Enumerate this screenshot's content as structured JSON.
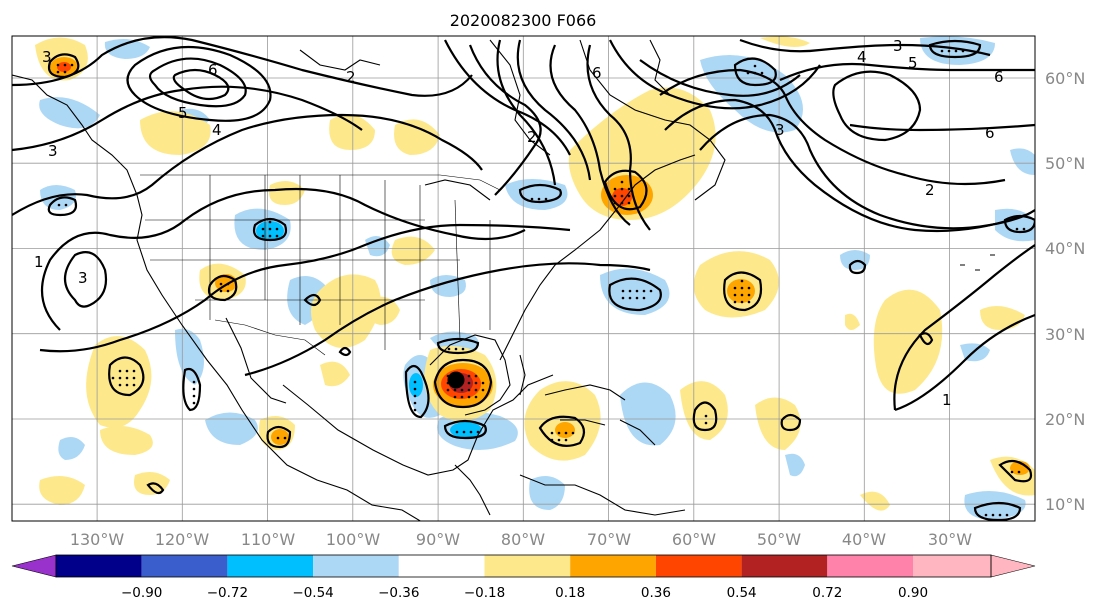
{
  "title": "2020082300 F066",
  "axes": {
    "lon_labels": [
      "130°W",
      "120°W",
      "110°W",
      "100°W",
      "90°W",
      "80°W",
      "70°W",
      "60°W",
      "50°W",
      "40°W",
      "30°W"
    ],
    "lat_labels": [
      "60°N",
      "50°N",
      "40°N",
      "30°N",
      "20°N",
      "10°N"
    ]
  },
  "colorbar": {
    "labels": [
      "−0.90",
      "−0.72",
      "−0.54",
      "−0.36",
      "−0.18",
      "0.18",
      "0.36",
      "0.54",
      "0.72",
      "0.90"
    ],
    "colors": [
      "#9932cc",
      "#00008b",
      "#3a5fcd",
      "#00bfff",
      "#add8f5",
      "#ffffff",
      "#fde98c",
      "#ffa500",
      "#ff4500",
      "#b22222",
      "#ff82ab",
      "#ffb6c1"
    ]
  },
  "contour_labels": [
    "3",
    "6",
    "2",
    "5",
    "4",
    "3",
    "1",
    "3",
    "2",
    "6",
    "3",
    "4",
    "5",
    "6",
    "6",
    "2",
    "1",
    "3"
  ],
  "hurricane_marker": "black-dot"
}
